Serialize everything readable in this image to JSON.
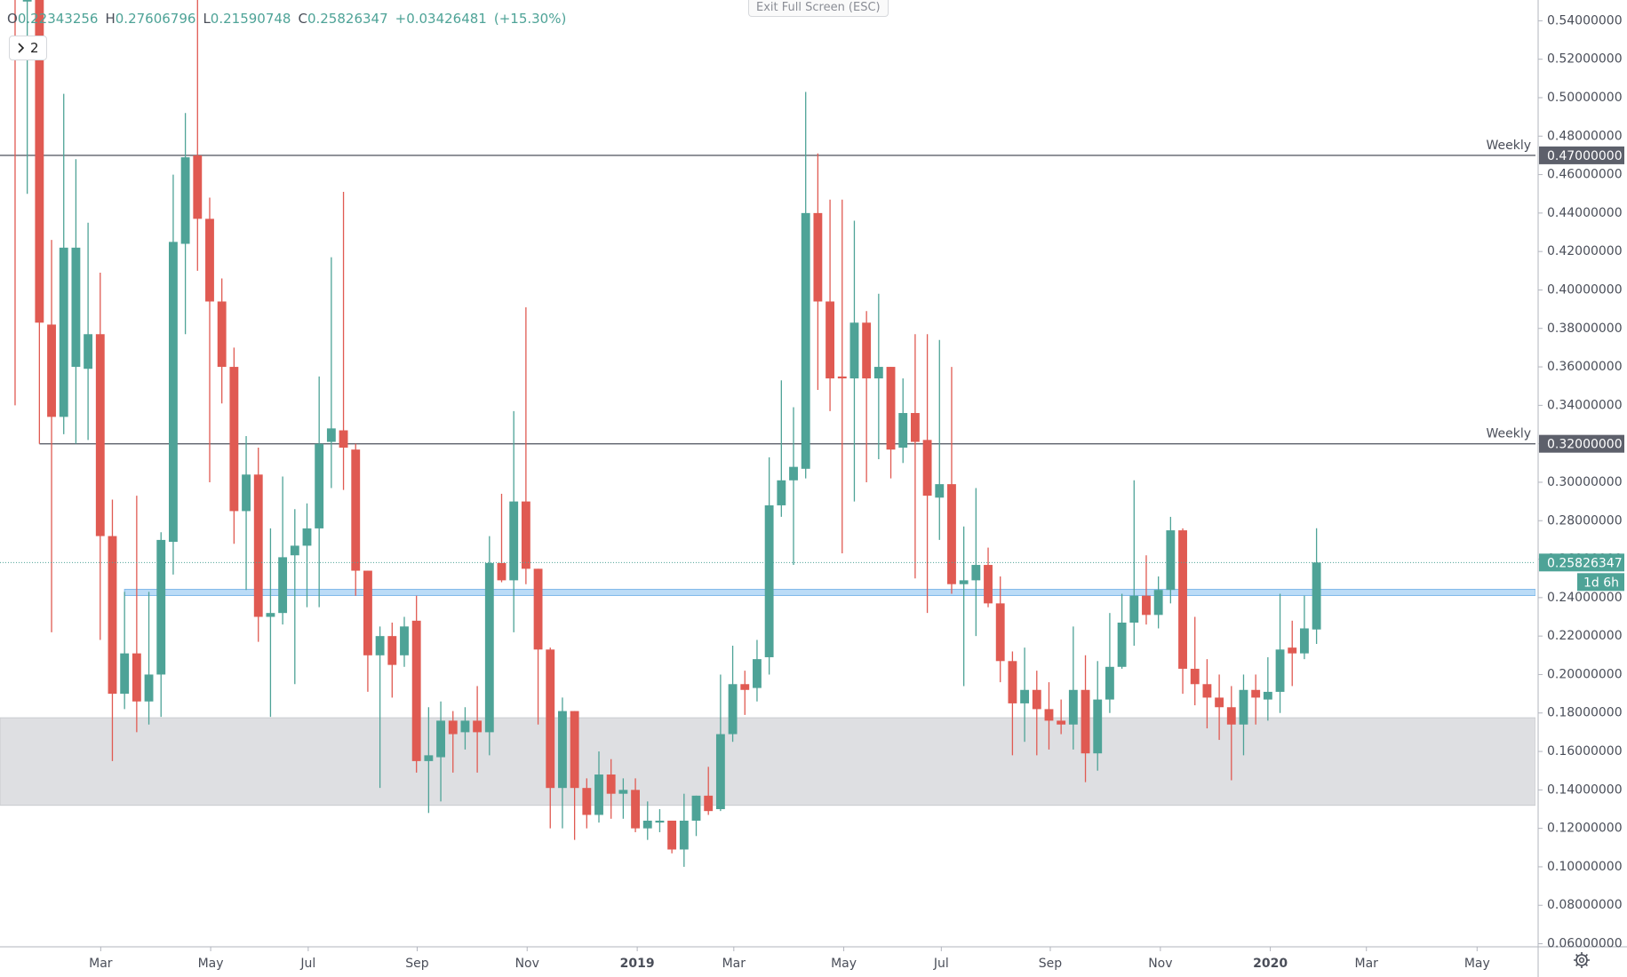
{
  "chart_data": {
    "type": "candlestick",
    "open": [
      0.58,
      0.55,
      0.56,
      0.382,
      0.334,
      0.36,
      0.359,
      0.377,
      0.272,
      0.19,
      0.211,
      0.186,
      0.2,
      0.269,
      0.424,
      0.47,
      0.437,
      0.394,
      0.36,
      0.285,
      0.304,
      0.23,
      0.232,
      0.262,
      0.267,
      0.276,
      0.321,
      0.327,
      0.317,
      0.254,
      0.21,
      0.22,
      0.21,
      0.228,
      0.155,
      0.157,
      0.176,
      0.17,
      0.176,
      0.17,
      0.258,
      0.249,
      0.29,
      0.255,
      0.213,
      0.141,
      0.181,
      0.141,
      0.127,
      0.148,
      0.138,
      0.14,
      0.12,
      0.123,
      0.124,
      0.109,
      0.124,
      0.137,
      0.13,
      0.169,
      0.195,
      0.193,
      0.209,
      0.288,
      0.301,
      0.307,
      0.44,
      0.394,
      0.355,
      0.354,
      0.383,
      0.354,
      0.36,
      0.318,
      0.336,
      0.322,
      0.292,
      0.299,
      0.247,
      0.249,
      0.257,
      0.237,
      0.207,
      0.185,
      0.192,
      0.182,
      0.176,
      0.174,
      0.192,
      0.159,
      0.187,
      0.204,
      0.227,
      0.241,
      0.231,
      0.244,
      0.275,
      0.203,
      0.195,
      0.188,
      0.183,
      0.174,
      0.192,
      0.187,
      0.191,
      0.214,
      0.211,
      0.22343256
    ],
    "high": [
      0.6,
      0.6,
      0.6,
      0.426,
      0.502,
      0.468,
      0.435,
      0.409,
      0.291,
      0.243,
      0.293,
      0.243,
      0.274,
      0.46,
      0.492,
      0.56,
      0.448,
      0.406,
      0.37,
      0.324,
      0.318,
      0.276,
      0.303,
      0.286,
      0.289,
      0.355,
      0.417,
      0.451,
      0.32,
      0.254,
      0.225,
      0.227,
      0.23,
      0.241,
      0.183,
      0.186,
      0.181,
      0.183,
      0.194,
      0.272,
      0.294,
      0.337,
      0.391,
      0.255,
      0.214,
      0.188,
      0.181,
      0.146,
      0.16,
      0.156,
      0.146,
      0.146,
      0.134,
      0.13,
      0.124,
      0.138,
      0.137,
      0.152,
      0.2,
      0.215,
      0.202,
      0.218,
      0.313,
      0.353,
      0.339,
      0.503,
      0.471,
      0.447,
      0.447,
      0.436,
      0.389,
      0.398,
      0.36,
      0.354,
      0.377,
      0.377,
      0.374,
      0.36,
      0.277,
      0.297,
      0.266,
      0.251,
      0.212,
      0.214,
      0.202,
      0.196,
      0.187,
      0.225,
      0.21,
      0.207,
      0.232,
      0.242,
      0.301,
      0.262,
      0.251,
      0.282,
      0.276,
      0.23,
      0.208,
      0.2,
      0.194,
      0.2,
      0.2,
      0.209,
      0.242,
      0.228,
      0.241,
      0.27606796
    ],
    "low": [
      0.34,
      0.45,
      0.32,
      0.222,
      0.325,
      0.32,
      0.322,
      0.218,
      0.155,
      0.182,
      0.17,
      0.174,
      0.178,
      0.252,
      0.377,
      0.41,
      0.3,
      0.341,
      0.268,
      0.244,
      0.217,
      0.178,
      0.226,
      0.195,
      0.235,
      0.235,
      0.297,
      0.296,
      0.241,
      0.191,
      0.141,
      0.188,
      0.204,
      0.149,
      0.128,
      0.134,
      0.149,
      0.161,
      0.149,
      0.158,
      0.248,
      0.222,
      0.247,
      0.174,
      0.12,
      0.12,
      0.114,
      0.12,
      0.123,
      0.125,
      0.125,
      0.118,
      0.114,
      0.118,
      0.107,
      0.1,
      0.116,
      0.127,
      0.129,
      0.165,
      0.179,
      0.186,
      0.2,
      0.282,
      0.257,
      0.302,
      0.348,
      0.337,
      0.263,
      0.29,
      0.3,
      0.312,
      0.302,
      0.31,
      0.25,
      0.232,
      0.27,
      0.242,
      0.194,
      0.22,
      0.235,
      0.196,
      0.158,
      0.165,
      0.158,
      0.161,
      0.169,
      0.161,
      0.144,
      0.15,
      0.18,
      0.203,
      0.215,
      0.226,
      0.224,
      0.237,
      0.19,
      0.184,
      0.172,
      0.166,
      0.145,
      0.158,
      0.174,
      0.176,
      0.18,
      0.194,
      0.208,
      0.21590748
    ],
    "close": [
      0.555,
      0.57,
      0.383,
      0.334,
      0.422,
      0.422,
      0.377,
      0.272,
      0.19,
      0.211,
      0.186,
      0.2,
      0.27,
      0.425,
      0.469,
      0.437,
      0.394,
      0.36,
      0.285,
      0.304,
      0.23,
      0.232,
      0.261,
      0.267,
      0.276,
      0.32,
      0.328,
      0.318,
      0.254,
      0.21,
      0.22,
      0.205,
      0.225,
      0.155,
      0.158,
      0.176,
      0.169,
      0.176,
      0.17,
      0.258,
      0.249,
      0.29,
      0.255,
      0.213,
      0.141,
      0.181,
      0.141,
      0.127,
      0.148,
      0.138,
      0.14,
      0.12,
      0.124,
      0.124,
      0.109,
      0.124,
      0.137,
      0.129,
      0.169,
      0.195,
      0.192,
      0.208,
      0.288,
      0.301,
      0.308,
      0.44,
      0.394,
      0.354,
      0.354,
      0.383,
      0.354,
      0.36,
      0.317,
      0.336,
      0.321,
      0.293,
      0.299,
      0.247,
      0.249,
      0.257,
      0.237,
      0.207,
      0.185,
      0.192,
      0.182,
      0.176,
      0.174,
      0.192,
      0.159,
      0.187,
      0.204,
      0.227,
      0.241,
      0.231,
      0.244,
      0.275,
      0.203,
      0.195,
      0.188,
      0.183,
      0.174,
      0.192,
      0.188,
      0.191,
      0.213,
      0.211,
      0.224,
      0.25826347
    ],
    "up_color": "#4ea397",
    "down_color": "#e05a52",
    "xlim": [
      -1.24,
      125.0
    ],
    "xticks": [
      {
        "value": 7.04,
        "label": "Mar"
      },
      {
        "value": 16.08,
        "label": "May"
      },
      {
        "value": 24.1,
        "label": "Jul"
      },
      {
        "value": 33.06,
        "label": "Sep"
      },
      {
        "value": 42.1,
        "label": "Nov"
      },
      {
        "value": 51.15,
        "label": "2019"
      },
      {
        "value": 59.09,
        "label": "Mar"
      },
      {
        "value": 68.13,
        "label": "May"
      },
      {
        "value": 76.15,
        "label": "Jul"
      },
      {
        "value": 85.11,
        "label": "Sep"
      },
      {
        "value": 94.16,
        "label": "Nov"
      },
      {
        "value": 103.2,
        "label": "2020"
      },
      {
        "value": 111.1,
        "label": "Mar"
      },
      {
        "value": 120.2,
        "label": "May"
      }
    ],
    "ylim": [
      0.0584,
      0.5508
    ],
    "yticks": [
      {
        "value": 0.06,
        "label": "0.06000000"
      },
      {
        "value": 0.08,
        "label": "0.08000000"
      },
      {
        "value": 0.1,
        "label": "0.10000000"
      },
      {
        "value": 0.12,
        "label": "0.12000000"
      },
      {
        "value": 0.14,
        "label": "0.14000000"
      },
      {
        "value": 0.16,
        "label": "0.16000000"
      },
      {
        "value": 0.18,
        "label": "0.18000000"
      },
      {
        "value": 0.2,
        "label": "0.20000000"
      },
      {
        "value": 0.22,
        "label": "0.22000000"
      },
      {
        "value": 0.24,
        "label": "0.24000000"
      },
      {
        "value": 0.26,
        "label": "0.26000000"
      },
      {
        "value": 0.28,
        "label": "0.28000000"
      },
      {
        "value": 0.3,
        "label": "0.30000000"
      },
      {
        "value": 0.32,
        "label": "0.32000000"
      },
      {
        "value": 0.34,
        "label": "0.34000000"
      },
      {
        "value": 0.36,
        "label": "0.36000000"
      },
      {
        "value": 0.38,
        "label": "0.38000000"
      },
      {
        "value": 0.4,
        "label": "0.40000000"
      },
      {
        "value": 0.42,
        "label": "0.42000000"
      },
      {
        "value": 0.44,
        "label": "0.44000000"
      },
      {
        "value": 0.46,
        "label": "0.46000000"
      },
      {
        "value": 0.48,
        "label": "0.48000000"
      },
      {
        "value": 0.5,
        "label": "0.50000000"
      },
      {
        "value": 0.52,
        "label": "0.52000000"
      },
      {
        "value": 0.54,
        "label": "0.54000000"
      }
    ],
    "zones": [
      {
        "low": 0.132,
        "high": 0.1775,
        "color": "#dedfe2"
      },
      {
        "low": 0.2411,
        "high": 0.2443,
        "color": "#bbdcf7",
        "x_start": 9
      }
    ],
    "levels": [
      {
        "value": 0.47,
        "label": "Weekly",
        "price_label": "0.47000000",
        "color": "#5d606b"
      },
      {
        "value": 0.32,
        "label": "Weekly",
        "price_label": "0.32000000",
        "color": "#5d606b",
        "x_start": 2
      }
    ],
    "last_price": {
      "value": 0.25826347,
      "label": "0.25826347",
      "countdown": "1d 6h",
      "color": "#4ea397"
    }
  },
  "header": {
    "items": [
      {
        "key": "O",
        "value": "0.22343256"
      },
      {
        "key": "H",
        "value": "0.27606796"
      },
      {
        "key": "L",
        "value": "0.21590748"
      },
      {
        "key": "C",
        "value": "0.25826347"
      }
    ],
    "change": "+0.03426481",
    "change_pct": "(+15.30%)"
  },
  "interval_button": "2",
  "exit_button": "Exit Full Screen (ESC)"
}
